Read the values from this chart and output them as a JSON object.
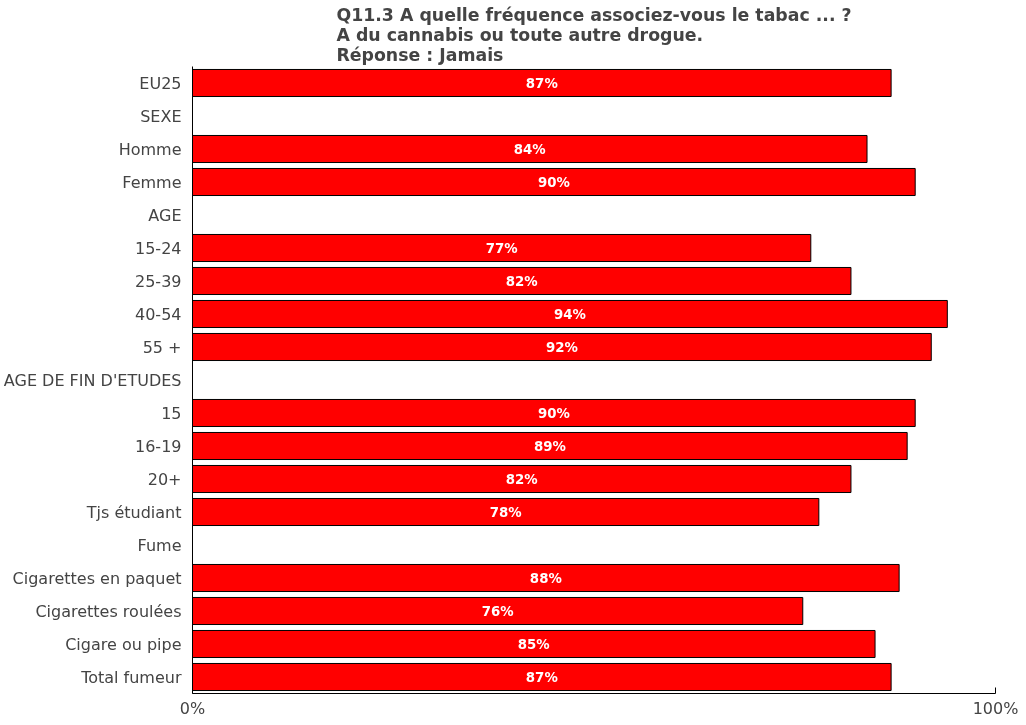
{
  "chart_data": {
    "type": "bar",
    "orientation": "horizontal",
    "title": "Q11.3 A quelle fréquence associez-vous le tabac ... ?\nA du cannabis ou toute autre drogue.\nRéponse : Jamais",
    "categories": [
      "EU25",
      "SEXE",
      "Homme",
      "Femme",
      "AGE",
      "15-24",
      "25-39",
      "40-54",
      "55 +",
      "AGE DE FIN D'ETUDES",
      "15",
      "16-19",
      "20+",
      "Tjs étudiant",
      "Fume",
      "Cigarettes en paquet",
      "Cigarettes roulées",
      "Cigare ou pipe",
      "Total fumeur"
    ],
    "values": [
      87,
      null,
      84,
      90,
      null,
      77,
      82,
      94,
      92,
      null,
      90,
      89,
      82,
      78,
      null,
      88,
      76,
      85,
      87
    ],
    "value_labels": [
      "87%",
      null,
      "84%",
      "90%",
      null,
      "77%",
      "82%",
      "94%",
      "92%",
      null,
      "90%",
      "89%",
      "82%",
      "78%",
      null,
      "88%",
      "76%",
      "85%",
      "87%"
    ],
    "color": "#ff0000",
    "xlim": [
      0,
      100
    ],
    "xticks": [
      {
        "value": 0,
        "label": "0%"
      },
      {
        "value": 100,
        "label": "100%"
      }
    ],
    "grid": false
  }
}
